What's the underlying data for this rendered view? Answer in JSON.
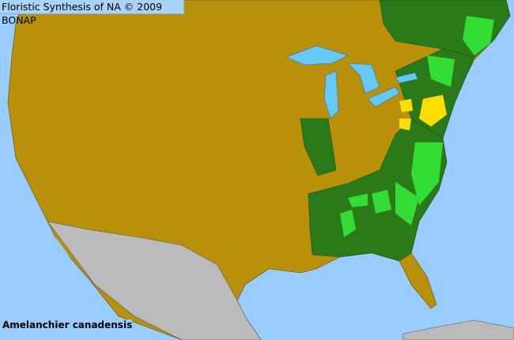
{
  "title": "Floristic Synthesis of NA © 2009 BONAP",
  "species_name": "Amelanchier canadensis",
  "colors": {
    "water": "#99ccff",
    "absent_land": "#b8900a",
    "present_state": "#2a7a1a",
    "present_county": "#33dd33",
    "rare_county": "#ffdd00",
    "outside_range": "#bbbbbb"
  }
}
